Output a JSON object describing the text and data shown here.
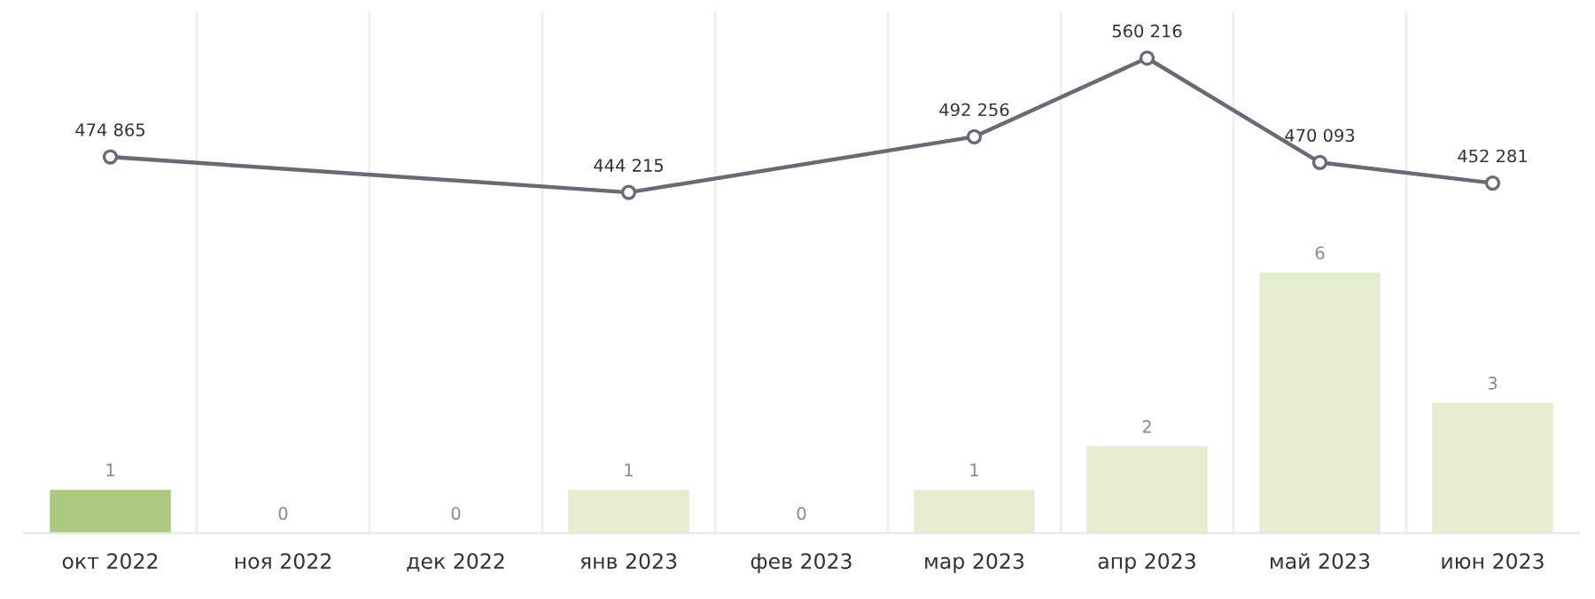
{
  "chart_data": {
    "type": "bar",
    "categories": [
      "окт 2022",
      "ноя 2022",
      "дек 2022",
      "янв 2023",
      "фев 2023",
      "мар 2023",
      "апр 2023",
      "май 2023",
      "июн 2023"
    ],
    "series": [
      {
        "values": [
          1,
          0,
          0,
          1,
          0,
          1,
          2,
          6,
          3
        ],
        "colors": [
          "#aac97e",
          "#e4edcf",
          "#e4edcf",
          "#e4edcf",
          "#e4edcf",
          "#e4edcf",
          "#e4edcf",
          "#e4edcf",
          "#e4edcf"
        ]
      },
      {
        "type": "line",
        "axis": "y2",
        "color": "#6b6878",
        "values": [
          474865,
          null,
          null,
          444215,
          null,
          492256,
          560216,
          470093,
          452281
        ],
        "value_labels": [
          "474 865",
          null,
          null,
          "444 215",
          null,
          "492 256",
          "560 216",
          "470 093",
          "452 281"
        ]
      }
    ],
    "ylim": [
      0,
      12
    ],
    "y2lim": [
      150000,
      600000
    ],
    "data_labels": true,
    "grid": "x",
    "legend": false,
    "marker": "circle",
    "line_style": "solid"
  }
}
